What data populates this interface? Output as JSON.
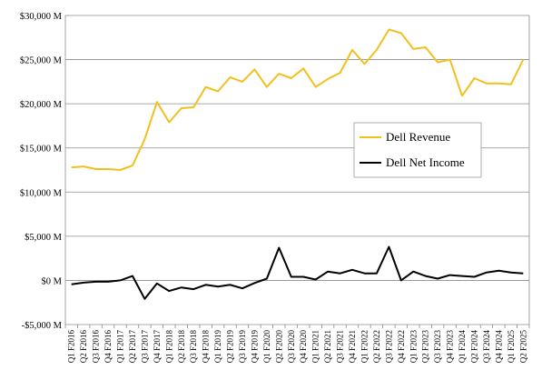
{
  "chart_data": {
    "type": "line",
    "title": "",
    "xlabel": "",
    "ylabel": "",
    "ylim": [
      -5000,
      30000
    ],
    "y_ticks": [
      {
        "value": -5000,
        "label": "-$5,000 M"
      },
      {
        "value": 0,
        "label": "$0 M"
      },
      {
        "value": 5000,
        "label": "$5,000 M"
      },
      {
        "value": 10000,
        "label": "$10,000 M"
      },
      {
        "value": 15000,
        "label": "$15,000 M"
      },
      {
        "value": 20000,
        "label": "$20,000 M"
      },
      {
        "value": 25000,
        "label": "$25,000 M"
      },
      {
        "value": 30000,
        "label": "$30,000 M"
      }
    ],
    "grid": "horizontal",
    "legend_position": "right-middle",
    "categories": [
      "Q1 F2016",
      "Q2 F2016",
      "Q3 F2016",
      "Q4 F2016",
      "Q1 F2017",
      "Q2 F2017",
      "Q3 F2017",
      "Q4 F2017",
      "Q1 F2018",
      "Q2 F2018",
      "Q3 F2018",
      "Q4 F2018",
      "Q1 F2019",
      "Q2 F2019",
      "Q3 F2019",
      "Q4 F2019",
      "Q1 F2020",
      "Q2 F2020",
      "Q3 F2020",
      "Q4 F2020",
      "Q1 F2021",
      "Q2 F2021",
      "Q3 F2021",
      "Q4 F2021",
      "Q1 F2022",
      "Q2 F2022",
      "Q3 F2022",
      "Q4 F2022",
      "Q1 F2023",
      "Q2 F2023",
      "Q3 F2023",
      "Q4 F2023",
      "Q1 F2024",
      "Q2 F2024",
      "Q3 F2024",
      "Q4 F2024",
      "Q1 F2025",
      "Q2 F2025"
    ],
    "series": [
      {
        "name": "Dell Revenue",
        "color": "#f2c01e",
        "values": [
          12800,
          12900,
          12600,
          12600,
          12500,
          13000,
          16000,
          20200,
          17900,
          19500,
          19600,
          21900,
          21400,
          23000,
          22500,
          23900,
          21900,
          23400,
          22900,
          24000,
          21900,
          22800,
          23500,
          26100,
          24500,
          26100,
          28400,
          28000,
          26200,
          26400,
          24700,
          25000,
          20900,
          22900,
          22300,
          22300,
          22200,
          25000
        ]
      },
      {
        "name": "Dell Net Income",
        "color": "#000000",
        "values": [
          -450,
          -250,
          -150,
          -150,
          0,
          500,
          -2100,
          -350,
          -1200,
          -800,
          -1000,
          -500,
          -700,
          -500,
          -900,
          -300,
          200,
          3700,
          400,
          400,
          100,
          1000,
          800,
          1200,
          800,
          800,
          3800,
          0,
          1000,
          500,
          200,
          600,
          500,
          400,
          900,
          1100,
          900,
          800
        ]
      }
    ]
  }
}
